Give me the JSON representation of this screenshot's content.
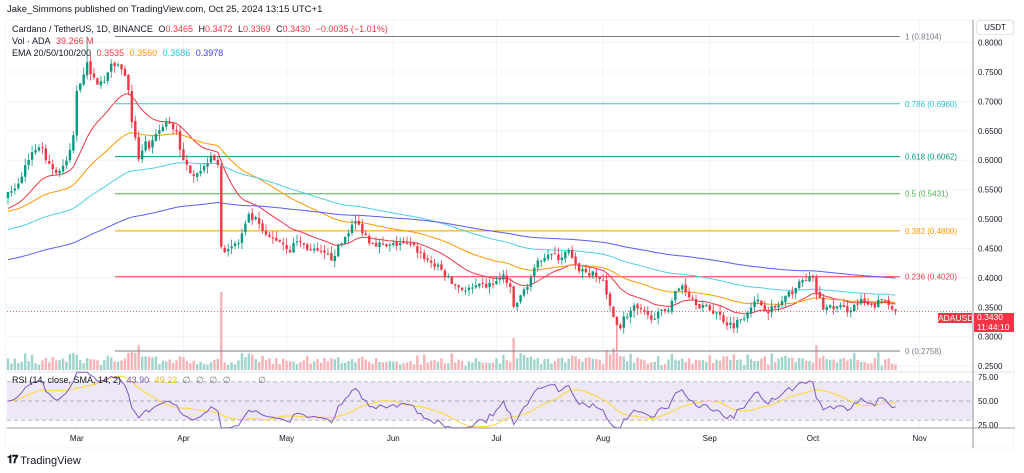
{
  "header": {
    "publisher_line": "Jake_Simmons published on TradingView.com, Oct 25, 2024 13:15 UTC+1"
  },
  "legend": {
    "symbol": "Cardano / TetherUS, 1D, BINANCE",
    "open_label": "O",
    "open": "0.3465",
    "high_label": "H",
    "high": "0.3472",
    "low_label": "L",
    "low": "0.3369",
    "close_label": "C",
    "close": "0.3430",
    "change": "−0.0035 (−1.01%)",
    "vol_label": "Vol · ADA",
    "vol_value": "39.266 M",
    "ema_label": "EMA 20/50/100/200",
    "ema_values": [
      "0.3535",
      "0.3560",
      "0.3686",
      "0.3978"
    ]
  },
  "currency_button": "USDT",
  "price_tag": {
    "symbol": "ADAUSDT",
    "price": "0.3430",
    "countdown": "11:44:10"
  },
  "rsi_legend": {
    "label": "RSI (14, close, SMA, 14, 2)",
    "rsi": "43.90",
    "sma": "49.22",
    "empty_values": [
      "∅",
      "∅",
      "∅",
      "∅",
      "∅"
    ]
  },
  "brand": "TradingView",
  "colors": {
    "up": "#089981",
    "down": "#f23645",
    "ema20": "#f23645",
    "ema50": "#ff9800",
    "ema100": "#4dd0e1",
    "ema200": "#5b5bf0",
    "rsi": "#7e57c2",
    "rsi_sma": "#fdd835",
    "rsi_band": "#ede7f6"
  },
  "chart_data": {
    "type": "candlestick",
    "symbol": "ADAUSDT",
    "interval": "1D",
    "price_axis": {
      "ticks": [
        "0.8000",
        "0.7500",
        "0.7000",
        "0.6500",
        "0.6000",
        "0.5500",
        "0.5000",
        "0.4500",
        "0.4000",
        "0.3500",
        "0.3000",
        "0.2500"
      ],
      "range": [
        0.25,
        0.82
      ]
    },
    "time_axis": {
      "ticks": [
        "Mar",
        "Apr",
        "May",
        "Jun",
        "Jul",
        "Aug",
        "Sep",
        "Oct",
        "Nov"
      ],
      "range": [
        "2024-02-10",
        "2024-11-05"
      ]
    },
    "last_candle": {
      "date": "2024-10-25",
      "open": 0.3465,
      "high": 0.3472,
      "low": 0.3369,
      "close": 0.343
    },
    "period_high": 0.8104,
    "period_low": 0.2758,
    "close_approx": [
      [
        "2024-02-10",
        0.546
      ],
      [
        "2024-02-13",
        0.558
      ],
      [
        "2024-02-16",
        0.605
      ],
      [
        "2024-02-19",
        0.626
      ],
      [
        "2024-02-22",
        0.595
      ],
      [
        "2024-02-24",
        0.578
      ],
      [
        "2024-02-27",
        0.595
      ],
      [
        "2024-02-29",
        0.64
      ],
      [
        "2024-03-01",
        0.72
      ],
      [
        "2024-03-04",
        0.765
      ],
      [
        "2024-03-06",
        0.736
      ],
      [
        "2024-03-09",
        0.731
      ],
      [
        "2024-03-11",
        0.77
      ],
      [
        "2024-03-14",
        0.758
      ],
      [
        "2024-03-16",
        0.724
      ],
      [
        "2024-03-17",
        0.66
      ],
      [
        "2024-03-19",
        0.605
      ],
      [
        "2024-03-21",
        0.634
      ],
      [
        "2024-03-22",
        0.617
      ],
      [
        "2024-03-25",
        0.651
      ],
      [
        "2024-03-27",
        0.663
      ],
      [
        "2024-03-30",
        0.651
      ],
      [
        "2024-04-01",
        0.595
      ],
      [
        "2024-04-04",
        0.578
      ],
      [
        "2024-04-07",
        0.588
      ],
      [
        "2024-04-09",
        0.612
      ],
      [
        "2024-04-11",
        0.595
      ],
      [
        "2024-04-12",
        0.447
      ],
      [
        "2024-04-14",
        0.452
      ],
      [
        "2024-04-17",
        0.459
      ],
      [
        "2024-04-20",
        0.503
      ],
      [
        "2024-04-22",
        0.498
      ],
      [
        "2024-04-25",
        0.469
      ],
      [
        "2024-04-29",
        0.464
      ],
      [
        "2024-05-02",
        0.447
      ],
      [
        "2024-05-04",
        0.464
      ],
      [
        "2024-05-08",
        0.447
      ],
      [
        "2024-05-14",
        0.434
      ],
      [
        "2024-05-17",
        0.459
      ],
      [
        "2024-05-19",
        0.481
      ],
      [
        "2024-05-21",
        0.495
      ],
      [
        "2024-05-23",
        0.481
      ],
      [
        "2024-05-25",
        0.464
      ],
      [
        "2024-05-30",
        0.452
      ],
      [
        "2024-06-03",
        0.459
      ],
      [
        "2024-06-07",
        0.452
      ],
      [
        "2024-06-11",
        0.43
      ],
      [
        "2024-06-15",
        0.413
      ],
      [
        "2024-06-18",
        0.391
      ],
      [
        "2024-06-22",
        0.379
      ],
      [
        "2024-06-26",
        0.384
      ],
      [
        "2024-06-29",
        0.388
      ],
      [
        "2024-07-02",
        0.396
      ],
      [
        "2024-07-03",
        0.405
      ],
      [
        "2024-07-05",
        0.379
      ],
      [
        "2024-07-06",
        0.35
      ],
      [
        "2024-07-08",
        0.367
      ],
      [
        "2024-07-09",
        0.379
      ],
      [
        "2024-07-11",
        0.401
      ],
      [
        "2024-07-14",
        0.435
      ],
      [
        "2024-07-16",
        0.442
      ],
      [
        "2024-07-19",
        0.434
      ],
      [
        "2024-07-22",
        0.444
      ],
      [
        "2024-07-24",
        0.418
      ],
      [
        "2024-07-27",
        0.41
      ],
      [
        "2024-07-29",
        0.405
      ],
      [
        "2024-08-01",
        0.396
      ],
      [
        "2024-08-02",
        0.367
      ],
      [
        "2024-08-04",
        0.334
      ],
      [
        "2024-08-06",
        0.316
      ],
      [
        "2024-08-07",
        0.332
      ],
      [
        "2024-08-10",
        0.349
      ],
      [
        "2024-08-14",
        0.334
      ],
      [
        "2024-08-17",
        0.337
      ],
      [
        "2024-08-20",
        0.35
      ],
      [
        "2024-08-22",
        0.374
      ],
      [
        "2024-08-24",
        0.388
      ],
      [
        "2024-08-26",
        0.371
      ],
      [
        "2024-08-29",
        0.354
      ],
      [
        "2024-09-03",
        0.341
      ],
      [
        "2024-09-06",
        0.323
      ],
      [
        "2024-09-08",
        0.32
      ],
      [
        "2024-09-11",
        0.337
      ],
      [
        "2024-09-13",
        0.354
      ],
      [
        "2024-09-15",
        0.359
      ],
      [
        "2024-09-18",
        0.346
      ],
      [
        "2024-09-20",
        0.349
      ],
      [
        "2024-09-22",
        0.359
      ],
      [
        "2024-09-26",
        0.384
      ],
      [
        "2024-09-29",
        0.4
      ],
      [
        "2024-10-01",
        0.396
      ],
      [
        "2024-10-02",
        0.376
      ],
      [
        "2024-10-04",
        0.349
      ],
      [
        "2024-10-08",
        0.35
      ],
      [
        "2024-10-11",
        0.346
      ],
      [
        "2024-10-15",
        0.359
      ],
      [
        "2024-10-18",
        0.35
      ],
      [
        "2024-10-21",
        0.362
      ],
      [
        "2024-10-22",
        0.362
      ],
      [
        "2024-10-24",
        0.3465
      ],
      [
        "2024-10-25",
        0.343
      ]
    ],
    "indicators": {
      "ema": [
        {
          "period": 20,
          "last": 0.3535
        },
        {
          "period": 50,
          "last": 0.356
        },
        {
          "period": 100,
          "last": 0.3686
        },
        {
          "period": 200,
          "last": 0.3978
        }
      ],
      "volume_last": "39.266 M",
      "rsi": {
        "period": 14,
        "last": 43.9,
        "sma_last": 49.22,
        "axis_ticks": [
          "75.00",
          "50.00",
          "25.00"
        ],
        "bands": [
          70,
          50,
          30
        ]
      }
    },
    "fibonacci": [
      {
        "ratio": "1",
        "price": 0.8104,
        "label": "1 (0.8104)",
        "color": "#787b86"
      },
      {
        "ratio": "0.786",
        "price": 0.696,
        "label": "0.786 (0.6960)",
        "color": "#26c6da"
      },
      {
        "ratio": "0.618",
        "price": 0.6062,
        "label": "0.618 (0.6062)",
        "color": "#089981"
      },
      {
        "ratio": "0.5",
        "price": 0.5431,
        "label": "0.5 (0.5431)",
        "color": "#4caf50"
      },
      {
        "ratio": "0.382",
        "price": 0.48,
        "label": "0.382 (0.4800)",
        "color": "#ff9800"
      },
      {
        "ratio": "0.236",
        "price": 0.402,
        "label": "0.236 (0.4020)",
        "color": "#f23645"
      },
      {
        "ratio": "0",
        "price": 0.2758,
        "label": "0 (0.2758)",
        "color": "#787b86"
      }
    ],
    "grid": true
  }
}
